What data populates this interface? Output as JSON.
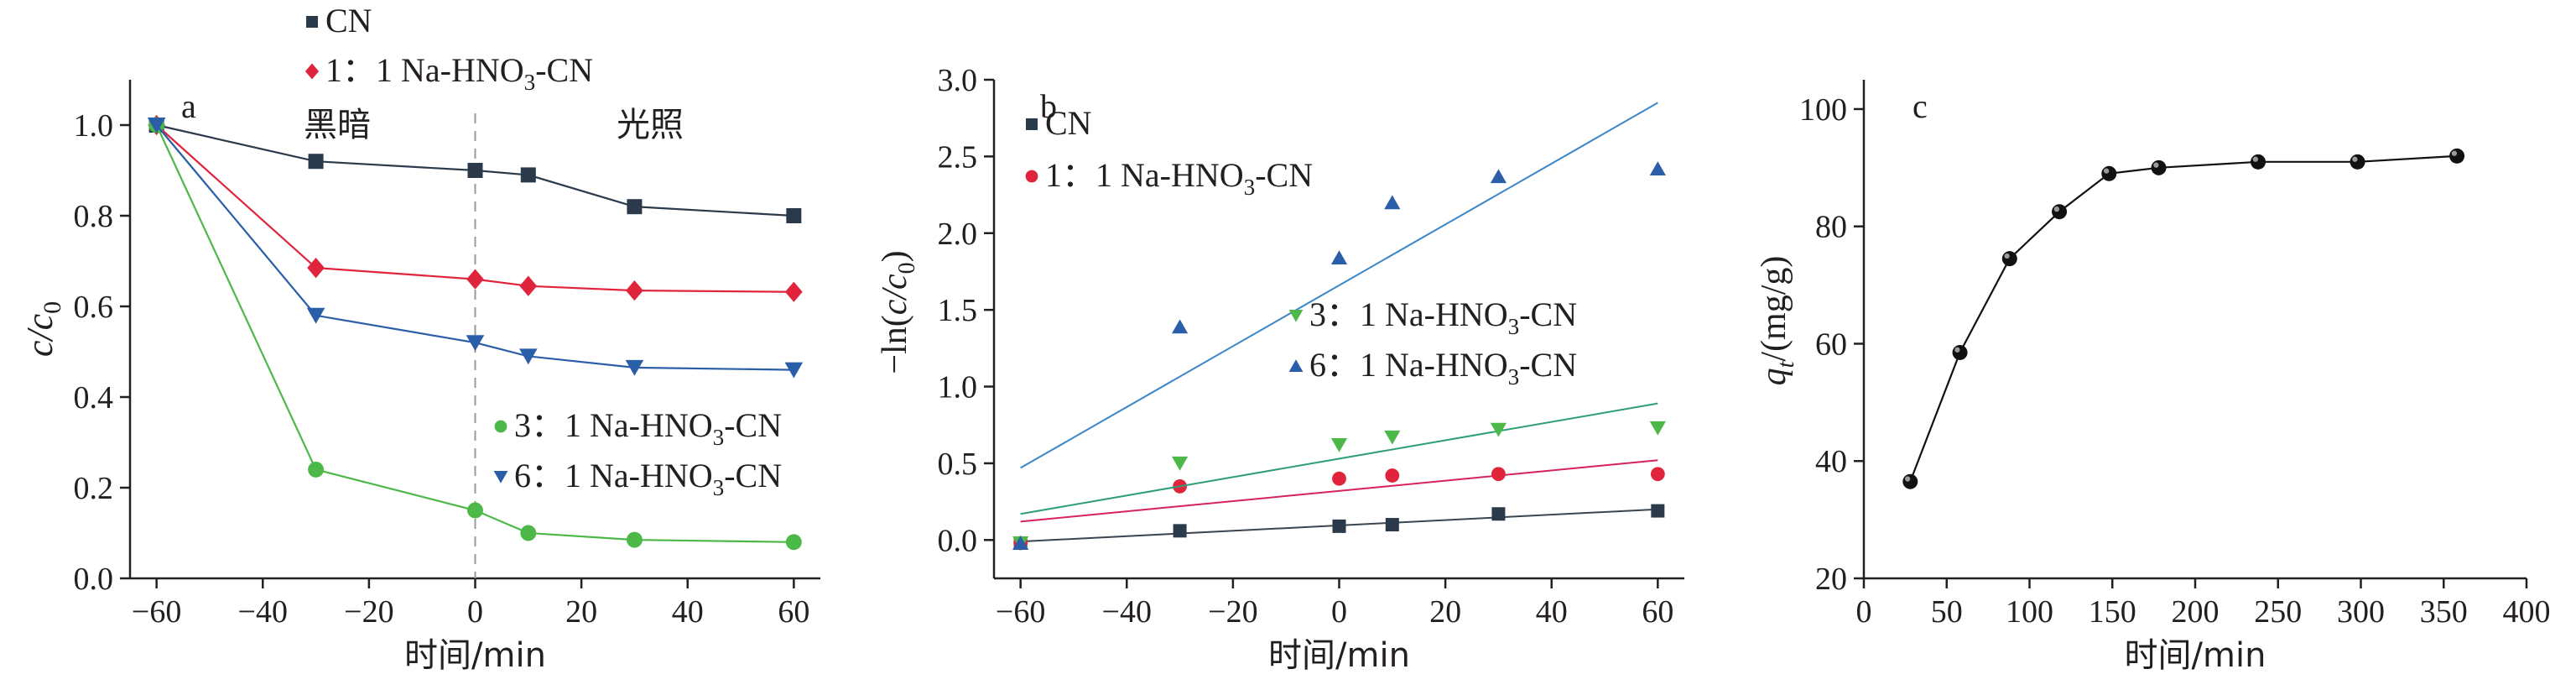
{
  "colors": {
    "CN": "#2b3a4a",
    "r1": "#e0243c",
    "r3": "#4cb848",
    "r6": "#2a5ea8",
    "fitCN": "#3a4550",
    "fit1": "#d6245a",
    "fit3": "#2e9e78",
    "fit6": "#3a86c8",
    "axis": "#231f20",
    "divider": "#9a9a9a"
  },
  "chart_data": [
    {
      "panel_label": "a",
      "type": "line",
      "xlabel": "时间/min",
      "ylabel_main": "c/c",
      "ylabel_sub": "0",
      "xlim": [
        -65,
        65
      ],
      "ylim": [
        0,
        1.1
      ],
      "xticks": [
        -60,
        -40,
        -20,
        0,
        20,
        40,
        60
      ],
      "xtick_labels": [
        "−60",
        "−40",
        "−20",
        "0",
        "20",
        "40",
        "60"
      ],
      "yticks": [
        0,
        0.2,
        0.4,
        0.6,
        0.8,
        1.0
      ],
      "ytick_labels": [
        "0.0",
        "0.2",
        "0.4",
        "0.6",
        "0.8",
        "1.0"
      ],
      "region_labels": {
        "dark": "黑暗",
        "light": "光照"
      },
      "divider_x": 0,
      "series": [
        {
          "name": "CN",
          "label_prefix": "CN",
          "marker": "square",
          "color_key": "CN",
          "x": [
            -60,
            -30,
            0,
            10,
            30,
            60
          ],
          "y": [
            1.0,
            0.92,
            0.9,
            0.89,
            0.82,
            0.8
          ]
        },
        {
          "name": "1：1 Na-HNO3-CN",
          "label_prefix": "1：1 Na-HNO",
          "label_sub": "3",
          "label_suffix": "-CN",
          "marker": "diamond",
          "color_key": "r1",
          "x": [
            -60,
            -30,
            0,
            10,
            30,
            60
          ],
          "y": [
            1.0,
            0.685,
            0.66,
            0.645,
            0.635,
            0.632
          ]
        },
        {
          "name": "3：1 Na-HNO3-CN",
          "label_prefix": "3：1 Na-HNO",
          "label_sub": "3",
          "label_suffix": "-CN",
          "marker": "circle",
          "color_key": "r3",
          "x": [
            -60,
            -30,
            0,
            10,
            30,
            60
          ],
          "y": [
            1.0,
            0.24,
            0.15,
            0.1,
            0.085,
            0.08
          ]
        },
        {
          "name": "6：1 Na-HNO3-CN",
          "label_prefix": "6：1 Na-HNO",
          "label_sub": "3",
          "label_suffix": "-CN",
          "marker": "triangle-down",
          "color_key": "r6",
          "x": [
            -60,
            -30,
            0,
            10,
            30,
            60
          ],
          "y": [
            1.0,
            0.58,
            0.52,
            0.49,
            0.465,
            0.46
          ]
        }
      ]
    },
    {
      "panel_label": "b",
      "type": "scatter",
      "xlabel": "时间/min",
      "ylabel_main": "−ln(c/c",
      "ylabel_sub": "0",
      "ylabel_close": ")",
      "xlim": [
        -65,
        65
      ],
      "ylim": [
        -0.25,
        3.0
      ],
      "xticks": [
        -60,
        -40,
        -20,
        0,
        20,
        40,
        60
      ],
      "xtick_labels": [
        "−60",
        "−40",
        "−20",
        "0",
        "20",
        "40",
        "60"
      ],
      "yticks": [
        0,
        0.5,
        1.0,
        1.5,
        2.0,
        2.5,
        3.0
      ],
      "ytick_labels": [
        "0.0",
        "0.5",
        "1.0",
        "1.5",
        "2.0",
        "2.5",
        "3.0"
      ],
      "series": [
        {
          "name": "CN",
          "label_prefix": "CN",
          "marker": "square",
          "color_key": "CN",
          "fit_color_key": "fitCN",
          "x": [
            -60,
            -30,
            0,
            10,
            30,
            60
          ],
          "y": [
            -0.02,
            0.06,
            0.09,
            0.1,
            0.17,
            0.19
          ],
          "fit": [
            [
              -60,
              -0.01
            ],
            [
              60,
              0.2
            ]
          ]
        },
        {
          "name": "1：1 Na-HNO3-CN",
          "label_prefix": "1：1 Na-HNO",
          "label_sub": "3",
          "label_suffix": "-CN",
          "marker": "circle",
          "color_key": "r1",
          "fit_color_key": "fit1",
          "x": [
            -60,
            -30,
            0,
            10,
            30,
            60
          ],
          "y": [
            -0.02,
            0.35,
            0.4,
            0.42,
            0.43,
            0.43
          ],
          "fit": [
            [
              -60,
              0.12
            ],
            [
              60,
              0.52
            ]
          ]
        },
        {
          "name": "3：1 Na-HNO3-CN",
          "label_prefix": "3：1 Na-HNO",
          "label_sub": "3",
          "label_suffix": "-CN",
          "marker": "triangle-down",
          "color_key": "r3",
          "fit_color_key": "fit3",
          "x": [
            -60,
            -30,
            0,
            10,
            30,
            60
          ],
          "y": [
            -0.02,
            0.5,
            0.62,
            0.67,
            0.72,
            0.73
          ],
          "fit": [
            [
              -60,
              0.17
            ],
            [
              60,
              0.89
            ]
          ]
        },
        {
          "name": "6：1 Na-HNO3-CN",
          "label_prefix": "6：1 Na-HNO",
          "label_sub": "3",
          "label_suffix": "-CN",
          "marker": "triangle-up",
          "color_key": "r6",
          "fit_color_key": "fit6",
          "x": [
            -60,
            -30,
            0,
            10,
            30,
            60
          ],
          "y": [
            -0.02,
            1.39,
            1.84,
            2.2,
            2.37,
            2.42
          ],
          "fit": [
            [
              -60,
              0.47
            ],
            [
              60,
              2.85
            ]
          ]
        }
      ]
    },
    {
      "panel_label": "c",
      "type": "line",
      "xlabel": "时间/min",
      "ylabel_main": "q",
      "ylabel_sub": "t",
      "ylabel_rest": "/(mg/g)",
      "xlim": [
        0,
        400
      ],
      "ylim": [
        20,
        105
      ],
      "xticks": [
        0,
        50,
        100,
        150,
        200,
        250,
        300,
        350,
        400
      ],
      "xtick_labels": [
        "0",
        "50",
        "100",
        "150",
        "200",
        "250",
        "300",
        "350",
        "400"
      ],
      "yticks": [
        20,
        40,
        60,
        80,
        100
      ],
      "ytick_labels": [
        "20",
        "40",
        "60",
        "80",
        "100"
      ],
      "series": [
        {
          "marker": "sphere",
          "color_key": "CN",
          "x": [
            28,
            58,
            88,
            118,
            148,
            178,
            238,
            298,
            358
          ],
          "y": [
            36.5,
            58.5,
            74.5,
            82.5,
            89,
            90,
            91,
            91,
            92
          ]
        }
      ]
    }
  ]
}
